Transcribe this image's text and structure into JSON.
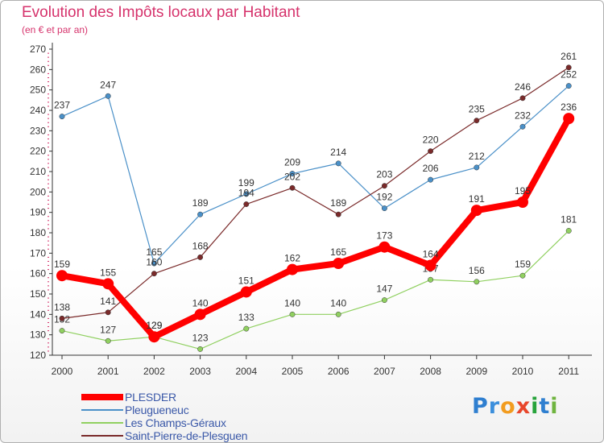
{
  "header": {
    "title": "Evolution des Impôts locaux par Habitant",
    "subtitle": "(en € et par an)"
  },
  "brand": {
    "letters": [
      "P",
      "r",
      "o",
      "x",
      "i",
      "t",
      "i"
    ],
    "colors": [
      "#2f7fd0",
      "#3c8fdc",
      "#f29c1f",
      "#e8462b",
      "#27a33b",
      "#2f7fd0",
      "#6fb43f"
    ]
  },
  "chart_data": {
    "type": "line",
    "x": [
      "2000",
      "2001",
      "2002",
      "2003",
      "2004",
      "2005",
      "2006",
      "2007",
      "2008",
      "2009",
      "2010",
      "2011"
    ],
    "yticks": [
      "120",
      "130",
      "140",
      "150",
      "160",
      "170",
      "180",
      "190",
      "200",
      "210",
      "220",
      "230",
      "240",
      "250",
      "260",
      "270"
    ],
    "ylim": [
      120,
      270
    ],
    "grid": false,
    "legend_placement": "bottom-left",
    "series": [
      {
        "name": "PLESDER",
        "color": "#ff0000",
        "values": [
          159,
          155,
          129,
          140,
          151,
          162,
          165,
          173,
          164,
          191,
          195,
          236
        ]
      },
      {
        "name": "Pleugueneuc",
        "color": "#4a90c8",
        "values": [
          237,
          247,
          165,
          189,
          199,
          209,
          214,
          192,
          206,
          212,
          232,
          252
        ]
      },
      {
        "name": "Les Champs-Géraux",
        "color": "#90d060",
        "values": [
          132,
          127,
          129,
          123,
          133,
          140,
          140,
          147,
          157,
          156,
          159,
          181
        ]
      },
      {
        "name": "Saint-Pierre-de-Plesguen",
        "color": "#7a2a2a",
        "values": [
          138,
          141,
          160,
          168,
          194,
          202,
          189,
          203,
          220,
          235,
          246,
          261
        ]
      }
    ]
  }
}
